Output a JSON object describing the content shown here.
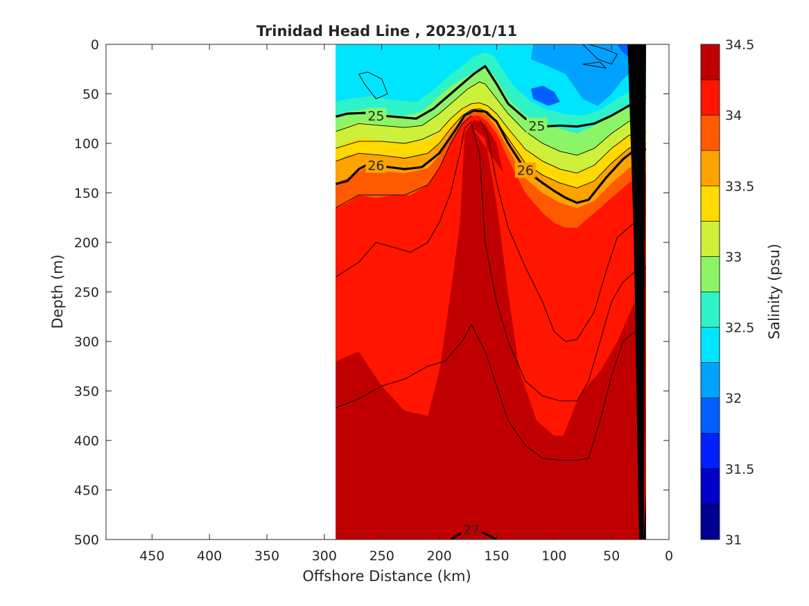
{
  "chart_data": {
    "type": "heatmap",
    "title": "Trinidad Head Line , 2023/01/11",
    "xlabel": "Offshore Distance (km)",
    "ylabel": "Depth (m)",
    "xlim": [
      490,
      0
    ],
    "ylim": [
      0,
      500
    ],
    "x_reversed": true,
    "y_reversed": true,
    "xticks": [
      450,
      400,
      350,
      300,
      250,
      200,
      150,
      100,
      50,
      0
    ],
    "yticks": [
      0,
      50,
      100,
      150,
      200,
      250,
      300,
      350,
      400,
      450,
      500
    ],
    "colorbar": {
      "label": "Salinity (psu)",
      "range": [
        31,
        34.5
      ],
      "ticks": [
        31,
        31.5,
        32,
        32.5,
        33,
        33.5,
        34,
        34.5
      ],
      "levels": [
        31,
        31.25,
        31.5,
        31.75,
        32,
        32.25,
        32.5,
        32.75,
        33,
        33.25,
        33.5,
        33.75,
        34,
        34.25,
        34.5
      ],
      "colors": [
        "#00008f",
        "#0000c8",
        "#0020ff",
        "#0060ff",
        "#00a2ff",
        "#00e5ff",
        "#2ef3c8",
        "#8cf567",
        "#cdf03a",
        "#ffd900",
        "#ffa300",
        "#ff5a00",
        "#ff1500",
        "#c00000"
      ]
    },
    "data_extent_km": [
      290,
      20
    ],
    "salinity_fill_regions": [
      {
        "level": 34.25,
        "description": "deep water and central core"
      },
      {
        "level": 34.0,
        "description": "mid-depth band"
      },
      {
        "level": 33.75,
        "description": "upper thermocline"
      },
      {
        "level": 33.5
      },
      {
        "level": 33.25
      },
      {
        "level": 33.0
      },
      {
        "level": 32.75
      },
      {
        "level": 32.5
      },
      {
        "level": 32.25,
        "description": "surface layer"
      },
      {
        "level": 32.0,
        "description": "nearshore fresh patch"
      },
      {
        "level": 31.75,
        "description": "low-salinity pocket"
      }
    ],
    "density_contours": [
      {
        "label": "25",
        "x": [
          290,
          280,
          260,
          250,
          230,
          220,
          205,
          190,
          180,
          170,
          160,
          150,
          140,
          125,
          110,
          95,
          80,
          65,
          50,
          35,
          20
        ],
        "y": [
          73,
          70,
          69,
          72,
          74,
          75,
          65,
          50,
          40,
          30,
          22,
          40,
          60,
          75,
          83,
          82,
          83,
          80,
          72,
          62,
          52
        ]
      },
      {
        "label": "26",
        "x": [
          290,
          280,
          270,
          260,
          250,
          230,
          215,
          200,
          185,
          178,
          170,
          160,
          150,
          140,
          125,
          110,
          100,
          90,
          80,
          70,
          55,
          40,
          30,
          20
        ],
        "y": [
          141,
          138,
          126,
          120,
          123,
          126,
          124,
          110,
          85,
          72,
          67,
          68,
          78,
          100,
          127,
          140,
          148,
          155,
          160,
          157,
          135,
          116,
          107,
          106
        ]
      },
      {
        "label": "27",
        "x": [
          190,
          180,
          170,
          160,
          150
        ],
        "y": [
          500,
          493,
          490,
          494,
          500
        ]
      }
    ],
    "bathymetry": {
      "x": [
        30,
        25,
        20,
        20,
        32,
        35,
        28,
        22
      ],
      "y": [
        500,
        500,
        300,
        100,
        0,
        0,
        200,
        480
      ]
    }
  }
}
